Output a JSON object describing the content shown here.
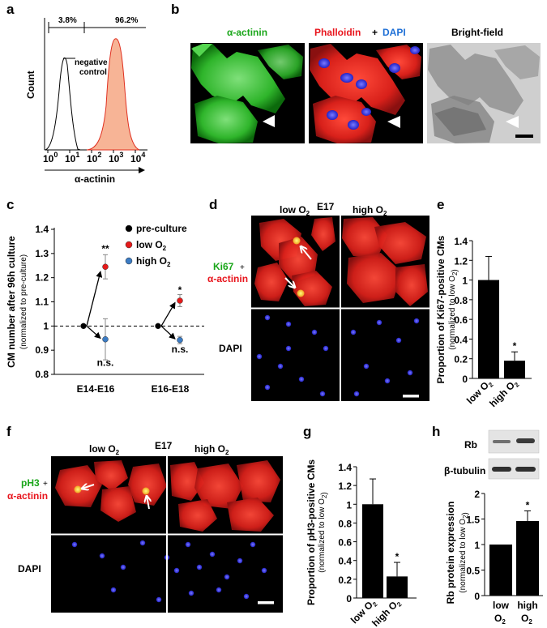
{
  "colors": {
    "green": "#1aa61a",
    "red": "#e8141c",
    "blue": "#1e6fd6",
    "hist_fill": "#f7b496",
    "hist_line": "#e03020",
    "micro_red": "#c21a14",
    "micro_blue": "#1f1fd8",
    "bar": "#000000",
    "pre_dot": "#000000",
    "low_dot": "#e51a1a",
    "high_dot": "#3c7cc4"
  },
  "panels": {
    "a": {
      "letter": "a",
      "left_pct": "3.8%",
      "right_pct": "96.2%",
      "neg_line1": "negative",
      "neg_line2": "control",
      "ylabel": "Count",
      "xlabel": "α-actinin",
      "xticks": [
        {
          "base": "10",
          "exp": "0"
        },
        {
          "base": "10",
          "exp": "1"
        },
        {
          "base": "10",
          "exp": "2"
        },
        {
          "base": "10",
          "exp": "3"
        },
        {
          "base": "10",
          "exp": "4"
        }
      ]
    },
    "b": {
      "letter": "b",
      "title_actinin": "α-actinin",
      "title_phalloidin": "Phalloidin",
      "title_plus": "+",
      "title_dapi": "DAPI",
      "title_bright": "Bright-field"
    },
    "c": {
      "letter": "c"
    },
    "d": {
      "letter": "d",
      "stage": "E17",
      "low_label": "low O",
      "high_label": "high O",
      "sub": "2",
      "marker1": "Ki67",
      "plus": "+",
      "marker2": "α-actinin",
      "dapi": "DAPI"
    },
    "e": {
      "letter": "e"
    },
    "f": {
      "letter": "f",
      "stage": "E17",
      "low_label": "low O",
      "high_label": "high O",
      "sub": "2",
      "marker1": "pH3",
      "plus": "+",
      "marker2": "α-actinin",
      "dapi": "DAPI"
    },
    "g": {
      "letter": "g"
    },
    "h": {
      "letter": "h",
      "blot1": "Rb",
      "blot2": "β-tubulin"
    }
  },
  "chart_data": [
    {
      "panel": "c",
      "type": "scatter",
      "ylabel": "CM number after 96h culture",
      "ylabel2": "(normalized to pre-culture)",
      "ylim": [
        0.8,
        1.4
      ],
      "yticks": [
        "0.8",
        "0.9",
        "1",
        "1.1",
        "1.2",
        "1.3",
        "1.4"
      ],
      "categories": [
        "E14-E16",
        "E16-E18"
      ],
      "reference_line": 1,
      "legend": [
        "pre-culture",
        "low O₂",
        "high O₂"
      ],
      "legend_position": "top-right",
      "series": [
        {
          "name": "pre-culture",
          "values": [
            1.0,
            1.0
          ],
          "errors": [
            0,
            0
          ]
        },
        {
          "name": "low O₂",
          "values": [
            1.245,
            1.105
          ],
          "errors": [
            0.05,
            0.025
          ]
        },
        {
          "name": "high O₂",
          "values": [
            0.945,
            0.942
          ],
          "errors": [
            0.085,
            0.015
          ]
        }
      ],
      "annotations": [
        "**",
        "n.s.",
        "*",
        "n.s."
      ]
    },
    {
      "panel": "e",
      "type": "bar",
      "ylabel": "Proportion of Ki67-positive CMs",
      "ylabel2": "(normalized to low O₂)",
      "ylim": [
        0,
        1.4
      ],
      "yticks": [
        "0",
        "0.2",
        "0.4",
        "0.6",
        "0.8",
        "1",
        "1.2",
        "1.4"
      ],
      "categories": [
        "low O₂",
        "high O₂"
      ],
      "values": [
        1.0,
        0.18
      ],
      "errors": [
        0.24,
        0.09
      ],
      "annotations": [
        "",
        "*"
      ]
    },
    {
      "panel": "g",
      "type": "bar",
      "ylabel": "Proportion of pH3-positive CMs",
      "ylabel2": "(normalized to low O₂)",
      "ylim": [
        0,
        1.4
      ],
      "yticks": [
        "0",
        "0.2",
        "0.4",
        "0.6",
        "0.8",
        "1",
        "1.2",
        "1.4"
      ],
      "categories": [
        "low O₂",
        "high O₂"
      ],
      "values": [
        1.0,
        0.23
      ],
      "errors": [
        0.27,
        0.15
      ],
      "annotations": [
        "",
        "*"
      ]
    },
    {
      "panel": "h",
      "type": "bar",
      "ylabel": "Rb protein expression",
      "ylabel2": "(normalized to low O₂)",
      "ylim": [
        0,
        2
      ],
      "yticks": [
        "0",
        "0.5",
        "1",
        "1.5",
        "2"
      ],
      "categories": [
        "low O₂",
        "high O₂"
      ],
      "values": [
        1.0,
        1.46
      ],
      "errors": [
        0,
        0.2
      ],
      "annotations": [
        "",
        "*"
      ]
    }
  ]
}
